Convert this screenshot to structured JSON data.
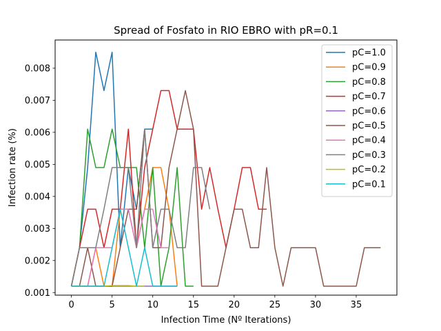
{
  "chart_data": {
    "type": "line",
    "title": "Spread of Fosfato in RIO EBRO with pR=0.1",
    "xlabel": "Infection Time (Nº Iterations)",
    "ylabel": "Infection rate (%)",
    "xlim": [
      -2,
      40
    ],
    "ylim": [
      0.00092,
      0.00888
    ],
    "xticks": [
      0,
      5,
      10,
      15,
      20,
      25,
      30,
      35
    ],
    "yticks": [
      0.001,
      0.002,
      0.003,
      0.004,
      0.005,
      0.006,
      0.007,
      0.008
    ],
    "ytick_labels": [
      "0.001",
      "0.002",
      "0.003",
      "0.004",
      "0.005",
      "0.006",
      "0.007",
      "0.008"
    ],
    "legend_position": "top-right",
    "grid": false,
    "series": [
      {
        "name": "pC=1.0",
        "color": "#1f77b4",
        "x": [
          0,
          1,
          2,
          3,
          4,
          5,
          6,
          7,
          8,
          9,
          10
        ],
        "y": [
          0.0012,
          0.0024,
          0.0049,
          0.0085,
          0.0073,
          0.0085,
          0.0024,
          0.0049,
          0.0036,
          0.0061,
          0.0061
        ]
      },
      {
        "name": "pC=0.9",
        "color": "#ff7f0e",
        "x": [
          0,
          1,
          2,
          3,
          4,
          5,
          6,
          7,
          8,
          9,
          10,
          11,
          12,
          13
        ],
        "y": [
          0.0012,
          0.0012,
          0.0012,
          0.0024,
          0.0012,
          0.0012,
          0.0036,
          0.0036,
          0.0024,
          0.0036,
          0.0049,
          0.0049,
          0.0036,
          0.0012
        ]
      },
      {
        "name": "pC=0.8",
        "color": "#2ca02c",
        "x": [
          0,
          1,
          2,
          3,
          4,
          5,
          6,
          7,
          8,
          9,
          10,
          11,
          12,
          13,
          14,
          15
        ],
        "y": [
          0.0012,
          0.0024,
          0.0061,
          0.0049,
          0.0049,
          0.0061,
          0.0049,
          0.0049,
          0.0049,
          0.0024,
          0.0049,
          0.0012,
          0.0024,
          0.0049,
          0.0012,
          0.0012
        ]
      },
      {
        "name": "pC=0.7",
        "color": "#d62728",
        "x": [
          0,
          1,
          2,
          3,
          4,
          5,
          6,
          7,
          8,
          9,
          10,
          11,
          12,
          13,
          14,
          15,
          16,
          17,
          18,
          19,
          20,
          21,
          22,
          23,
          24
        ],
        "y": [
          0.0012,
          0.0024,
          0.0036,
          0.0036,
          0.0024,
          0.0036,
          0.0036,
          0.0061,
          0.0024,
          0.0049,
          0.0061,
          0.0073,
          0.0073,
          0.0061,
          0.0061,
          0.0061,
          0.0036,
          0.0049,
          0.0036,
          0.0024,
          0.0036,
          0.0049,
          0.0049,
          0.0036,
          0.0036
        ]
      },
      {
        "name": "pC=0.6",
        "color": "#9467bd",
        "x": [
          0,
          1,
          2,
          3,
          4,
          5,
          6,
          7,
          8,
          9,
          10,
          11,
          12,
          13
        ],
        "y": [
          0.0012,
          0.0012,
          0.0012,
          0.0012,
          0.0012,
          0.0012,
          0.0012,
          0.0012,
          0.0012,
          0.0012,
          0.0012,
          0.0012,
          0.0012,
          0.0012
        ]
      },
      {
        "name": "pC=0.5",
        "color": "#8c564b",
        "x": [
          0,
          1,
          2,
          3,
          4,
          5,
          6,
          7,
          8,
          9,
          10,
          11,
          12,
          13,
          14,
          15,
          16,
          17,
          18,
          19,
          20,
          21,
          22,
          23,
          24,
          25,
          26,
          27,
          28,
          29,
          30,
          31,
          32,
          33,
          34,
          35,
          36,
          37,
          38
        ],
        "y": [
          0.0012,
          0.0012,
          0.0024,
          0.0012,
          0.0012,
          0.0012,
          0.0024,
          0.0036,
          0.0036,
          0.0061,
          0.0024,
          0.0024,
          0.0049,
          0.0061,
          0.0073,
          0.0061,
          0.0012,
          0.0012,
          0.0012,
          0.0024,
          0.0036,
          0.0036,
          0.0024,
          0.0024,
          0.0049,
          0.0024,
          0.0012,
          0.0024,
          0.0024,
          0.0024,
          0.0024,
          0.0012,
          0.0012,
          0.0012,
          0.0012,
          0.0012,
          0.0024,
          0.0024,
          0.0024
        ]
      },
      {
        "name": "pC=0.4",
        "color": "#e377c2",
        "x": [
          0,
          1,
          2,
          3,
          4,
          5,
          6,
          7,
          8,
          9,
          10,
          11,
          12
        ],
        "y": [
          0.0012,
          0.0012,
          0.0012,
          0.0024,
          0.0024,
          0.0024,
          0.0036,
          0.0036,
          0.0024,
          0.0036,
          0.0036,
          0.0024,
          0.0024
        ]
      },
      {
        "name": "pC=0.3",
        "color": "#7f7f7f",
        "x": [
          0,
          1,
          2,
          3,
          4,
          5,
          6,
          7,
          8,
          9,
          10,
          11,
          12,
          13,
          14,
          15,
          16,
          17
        ],
        "y": [
          0.0012,
          0.0024,
          0.0024,
          0.0024,
          0.0036,
          0.0049,
          0.0049,
          0.0049,
          0.0024,
          0.0061,
          0.0024,
          0.0036,
          0.0036,
          0.0024,
          0.0024,
          0.0049,
          0.0049,
          0.0036
        ]
      },
      {
        "name": "pC=0.2",
        "color": "#bcbd22",
        "x": [
          0,
          1,
          2,
          3,
          4,
          5,
          6,
          7,
          8,
          9
        ],
        "y": [
          0.0012,
          0.0012,
          0.0012,
          0.0012,
          0.0012,
          0.00122,
          0.00122,
          0.00122,
          0.0012,
          0.0012
        ]
      },
      {
        "name": "pC=0.1",
        "color": "#17becf",
        "x": [
          0,
          1,
          2,
          3,
          4,
          5,
          6,
          7,
          8,
          9,
          10,
          11,
          12,
          13
        ],
        "y": [
          0.0012,
          0.0012,
          0.0012,
          0.0012,
          0.0012,
          0.0024,
          0.0036,
          0.0024,
          0.0012,
          0.0024,
          0.0012,
          0.0012,
          0.0012,
          0.0012
        ]
      }
    ]
  }
}
